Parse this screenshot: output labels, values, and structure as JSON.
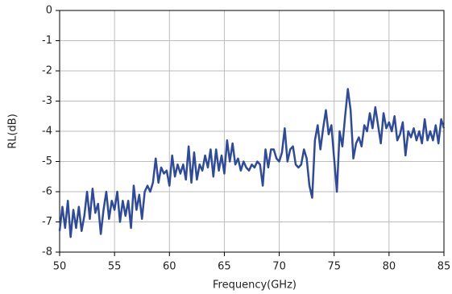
{
  "chart_data": {
    "type": "line",
    "xlabel": "Frequency(GHz)",
    "ylabel": "RL(dB)",
    "x": [
      50,
      50.25,
      50.5,
      50.75,
      51,
      51.25,
      51.5,
      51.75,
      52,
      52.25,
      52.5,
      52.75,
      53,
      53.25,
      53.5,
      53.75,
      54,
      54.25,
      54.5,
      54.75,
      55,
      55.25,
      55.5,
      55.75,
      56,
      56.25,
      56.5,
      56.75,
      57,
      57.25,
      57.5,
      57.75,
      58,
      58.25,
      58.5,
      58.75,
      59,
      59.25,
      59.5,
      59.75,
      60,
      60.25,
      60.5,
      60.75,
      61,
      61.25,
      61.5,
      61.75,
      62,
      62.25,
      62.5,
      62.75,
      63,
      63.25,
      63.5,
      63.75,
      64,
      64.25,
      64.5,
      64.75,
      65,
      65.25,
      65.5,
      65.75,
      66,
      66.25,
      66.5,
      66.75,
      67,
      67.25,
      67.5,
      67.75,
      68,
      68.25,
      68.5,
      68.75,
      69,
      69.25,
      69.5,
      69.75,
      70,
      70.25,
      70.5,
      70.75,
      71,
      71.25,
      71.5,
      71.75,
      72,
      72.25,
      72.5,
      72.75,
      73,
      73.25,
      73.5,
      73.75,
      74,
      74.25,
      74.5,
      74.75,
      75,
      75.25,
      75.5,
      75.75,
      76,
      76.25,
      76.5,
      76.75,
      77,
      77.25,
      77.5,
      77.75,
      78,
      78.25,
      78.5,
      78.75,
      79,
      79.25,
      79.5,
      79.75,
      80,
      80.25,
      80.5,
      80.75,
      81,
      81.25,
      81.5,
      81.75,
      82,
      82.25,
      82.5,
      82.75,
      83,
      83.25,
      83.5,
      83.75,
      84,
      84.25,
      84.5,
      84.75,
      85
    ],
    "values": [
      -7.3,
      -6.5,
      -7.2,
      -6.3,
      -7.5,
      -6.6,
      -7.2,
      -6.5,
      -7.3,
      -6.8,
      -6.0,
      -6.9,
      -5.9,
      -6.7,
      -6.4,
      -7.4,
      -6.6,
      -6.0,
      -6.9,
      -6.3,
      -6.6,
      -6.0,
      -7.0,
      -6.3,
      -6.8,
      -6.3,
      -7.2,
      -5.8,
      -6.6,
      -6.1,
      -6.9,
      -6.0,
      -5.8,
      -6.0,
      -5.7,
      -4.9,
      -5.7,
      -5.2,
      -5.4,
      -5.3,
      -5.8,
      -4.8,
      -5.5,
      -5.1,
      -5.4,
      -5.1,
      -5.6,
      -4.5,
      -5.7,
      -4.7,
      -5.6,
      -5.1,
      -5.3,
      -4.8,
      -5.2,
      -4.6,
      -5.5,
      -4.6,
      -5.3,
      -4.8,
      -5.4,
      -4.3,
      -5.0,
      -4.4,
      -5.1,
      -4.9,
      -5.3,
      -5.0,
      -5.2,
      -5.3,
      -5.1,
      -5.2,
      -5.0,
      -5.1,
      -5.8,
      -4.6,
      -5.2,
      -4.6,
      -4.6,
      -4.9,
      -5.0,
      -4.7,
      -3.9,
      -5.0,
      -4.6,
      -4.5,
      -5.1,
      -5.2,
      -5.1,
      -4.6,
      -4.9,
      -5.8,
      -6.2,
      -4.3,
      -3.8,
      -4.6,
      -3.9,
      -3.3,
      -4.1,
      -3.8,
      -4.9,
      -6.0,
      -4.0,
      -4.5,
      -3.5,
      -2.6,
      -3.3,
      -4.9,
      -4.4,
      -4.2,
      -4.5,
      -3.8,
      -4.0,
      -3.4,
      -3.9,
      -3.2,
      -3.8,
      -4.4,
      -3.4,
      -3.9,
      -3.7,
      -4.0,
      -3.5,
      -4.3,
      -4.1,
      -3.7,
      -4.8,
      -4.0,
      -4.2,
      -3.9,
      -4.3,
      -4.0,
      -4.4,
      -3.6,
      -4.3,
      -4.0,
      -4.3,
      -3.8,
      -4.4,
      -3.6,
      -3.9
    ],
    "color": "#2e4a9b",
    "xlim": [
      50,
      85
    ],
    "xticks": [
      50,
      55,
      60,
      65,
      70,
      75,
      80,
      85
    ],
    "ylim": [
      -8,
      0
    ],
    "yticks": [
      0,
      -1,
      -2,
      -3,
      -4,
      -5,
      -6,
      -7,
      -8
    ],
    "grid": true
  }
}
